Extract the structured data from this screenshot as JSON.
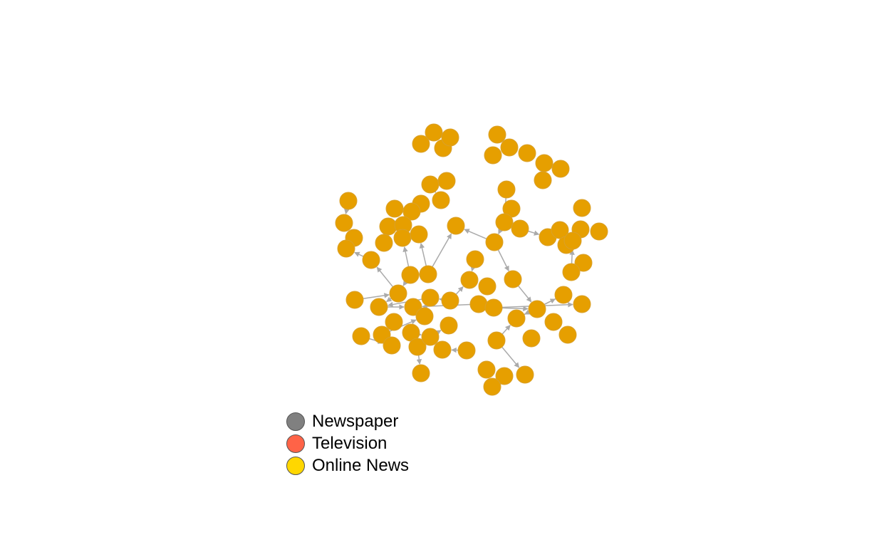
{
  "network": {
    "node_color": "#e69f00",
    "edge_color": "#aaaaaa"
  },
  "legend": {
    "items": [
      {
        "label": "Newspaper",
        "color": "#808080"
      },
      {
        "label": "Television",
        "color": "#ff6347"
      },
      {
        "label": "Online News",
        "color": "#ffd700"
      }
    ]
  }
}
